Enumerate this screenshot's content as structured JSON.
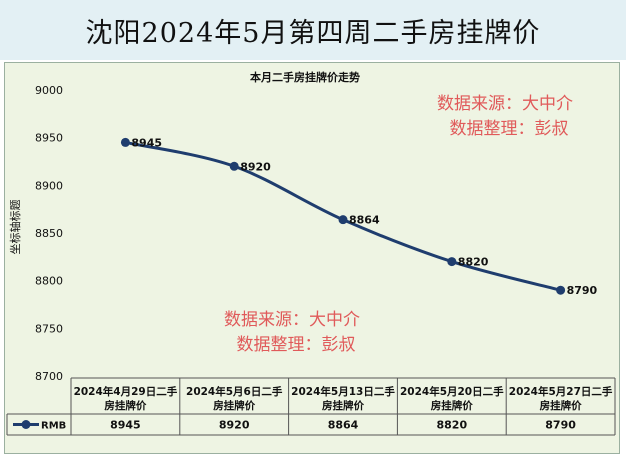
{
  "banner": {
    "title": "沈阳2024年5月第四周二手房挂牌价"
  },
  "watermarks": [
    {
      "line1": "数据来源：大中介",
      "line2": "数据整理：彭叔"
    },
    {
      "line1": "数据来源：大中介",
      "line2": "数据整理：彭叔"
    }
  ],
  "colors": {
    "line": "#1f3d6e",
    "watermark": "#e05a5a",
    "panel": "#eef4e3",
    "banner": "#e3f0f4"
  },
  "chart_data": {
    "type": "line",
    "title": "本月二手房挂牌价走势",
    "ylabel": "坐标轴标题",
    "ylim": [
      8700,
      9000
    ],
    "yticks": [
      8700,
      8750,
      8800,
      8850,
      8900,
      8950,
      9000
    ],
    "categories": [
      "2024年4月29日二手房挂牌价",
      "2024年5月6日二手房挂牌价",
      "2024年5月13日二手房挂牌价",
      "2024年5月20日二手房挂牌价",
      "2024年5月27日二手房挂牌价"
    ],
    "series": [
      {
        "name": "RMB",
        "values": [
          8945,
          8920,
          8864,
          8820,
          8790
        ]
      }
    ],
    "data_labels": [
      "8945",
      "8920",
      "8864",
      "8820",
      "8790"
    ],
    "grid": false,
    "legend": "data-table"
  }
}
